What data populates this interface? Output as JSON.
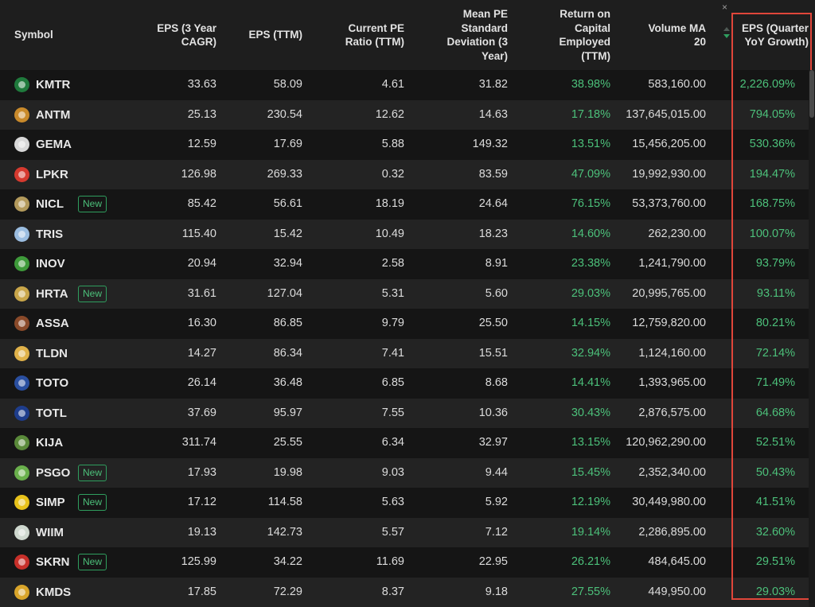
{
  "table": {
    "columns": [
      {
        "key": "symbol",
        "label": "Symbol"
      },
      {
        "key": "eps_3y_cagr",
        "label": "EPS (3 Year\nCAGR)"
      },
      {
        "key": "eps_ttm",
        "label": "EPS (TTM)"
      },
      {
        "key": "pe_ttm",
        "label": "Current PE\nRatio (TTM)"
      },
      {
        "key": "pe_std",
        "label": "Mean PE\nStandard\nDeviation (3\nYear)"
      },
      {
        "key": "roce",
        "label": "Return on\nCapital\nEmployed\n(TTM)"
      },
      {
        "key": "vol_ma20",
        "label": "Volume MA\n20"
      },
      {
        "key": "eps_qyoy",
        "label": "EPS (Quarter\nYoY Growth)"
      }
    ],
    "close_glyph": "×",
    "new_badge_label": "New",
    "rows": [
      {
        "symbol": "KMTR",
        "logo_color": "#1f7a3c",
        "new": false,
        "eps_3y_cagr": "33.63",
        "eps_ttm": "58.09",
        "pe_ttm": "4.61",
        "pe_std": "31.82",
        "roce": "38.98%",
        "vol_ma20": "583,160.00",
        "eps_qyoy": "2,226.09%"
      },
      {
        "symbol": "ANTM",
        "logo_color": "#c98a2b",
        "new": false,
        "eps_3y_cagr": "25.13",
        "eps_ttm": "230.54",
        "pe_ttm": "12.62",
        "pe_std": "14.63",
        "roce": "17.18%",
        "vol_ma20": "137,645,015.00",
        "eps_qyoy": "794.05%"
      },
      {
        "symbol": "GEMA",
        "logo_color": "#d8d8d8",
        "new": false,
        "eps_3y_cagr": "12.59",
        "eps_ttm": "17.69",
        "pe_ttm": "5.88",
        "pe_std": "149.32",
        "roce": "13.51%",
        "vol_ma20": "15,456,205.00",
        "eps_qyoy": "530.36%"
      },
      {
        "symbol": "LPKR",
        "logo_color": "#d63a2f",
        "new": false,
        "eps_3y_cagr": "126.98",
        "eps_ttm": "269.33",
        "pe_ttm": "0.32",
        "pe_std": "83.59",
        "roce": "47.09%",
        "vol_ma20": "19,992,930.00",
        "eps_qyoy": "194.47%"
      },
      {
        "symbol": "NICL",
        "logo_color": "#b39a5c",
        "new": true,
        "eps_3y_cagr": "85.42",
        "eps_ttm": "56.61",
        "pe_ttm": "18.19",
        "pe_std": "24.64",
        "roce": "76.15%",
        "vol_ma20": "53,373,760.00",
        "eps_qyoy": "168.75%"
      },
      {
        "symbol": "TRIS",
        "logo_color": "#9bbde0",
        "new": false,
        "eps_3y_cagr": "115.40",
        "eps_ttm": "15.42",
        "pe_ttm": "10.49",
        "pe_std": "18.23",
        "roce": "14.60%",
        "vol_ma20": "262,230.00",
        "eps_qyoy": "100.07%"
      },
      {
        "symbol": "INOV",
        "logo_color": "#3e9a3a",
        "new": false,
        "eps_3y_cagr": "20.94",
        "eps_ttm": "32.94",
        "pe_ttm": "2.58",
        "pe_std": "8.91",
        "roce": "23.38%",
        "vol_ma20": "1,241,790.00",
        "eps_qyoy": "93.79%"
      },
      {
        "symbol": "HRTA",
        "logo_color": "#c9a64a",
        "new": true,
        "eps_3y_cagr": "31.61",
        "eps_ttm": "127.04",
        "pe_ttm": "5.31",
        "pe_std": "5.60",
        "roce": "29.03%",
        "vol_ma20": "20,995,765.00",
        "eps_qyoy": "93.11%"
      },
      {
        "symbol": "ASSA",
        "logo_color": "#8a4a2a",
        "new": false,
        "eps_3y_cagr": "16.30",
        "eps_ttm": "86.85",
        "pe_ttm": "9.79",
        "pe_std": "25.50",
        "roce": "14.15%",
        "vol_ma20": "12,759,820.00",
        "eps_qyoy": "80.21%"
      },
      {
        "symbol": "TLDN",
        "logo_color": "#e0b24a",
        "new": false,
        "eps_3y_cagr": "14.27",
        "eps_ttm": "86.34",
        "pe_ttm": "7.41",
        "pe_std": "15.51",
        "roce": "32.94%",
        "vol_ma20": "1,124,160.00",
        "eps_qyoy": "72.14%"
      },
      {
        "symbol": "TOTO",
        "logo_color": "#2a4fa0",
        "new": false,
        "eps_3y_cagr": "26.14",
        "eps_ttm": "36.48",
        "pe_ttm": "6.85",
        "pe_std": "8.68",
        "roce": "14.41%",
        "vol_ma20": "1,393,965.00",
        "eps_qyoy": "71.49%"
      },
      {
        "symbol": "TOTL",
        "logo_color": "#1e3d8c",
        "new": false,
        "eps_3y_cagr": "37.69",
        "eps_ttm": "95.97",
        "pe_ttm": "7.55",
        "pe_std": "10.36",
        "roce": "30.43%",
        "vol_ma20": "2,876,575.00",
        "eps_qyoy": "64.68%"
      },
      {
        "symbol": "KIJA",
        "logo_color": "#5a8a3a",
        "new": false,
        "eps_3y_cagr": "311.74",
        "eps_ttm": "25.55",
        "pe_ttm": "6.34",
        "pe_std": "32.97",
        "roce": "13.15%",
        "vol_ma20": "120,962,290.00",
        "eps_qyoy": "52.51%"
      },
      {
        "symbol": "PSGO",
        "logo_color": "#6ab04c",
        "new": true,
        "eps_3y_cagr": "17.93",
        "eps_ttm": "19.98",
        "pe_ttm": "9.03",
        "pe_std": "9.44",
        "roce": "15.45%",
        "vol_ma20": "2,352,340.00",
        "eps_qyoy": "50.43%"
      },
      {
        "symbol": "SIMP",
        "logo_color": "#e8c21a",
        "new": true,
        "eps_3y_cagr": "17.12",
        "eps_ttm": "114.58",
        "pe_ttm": "5.63",
        "pe_std": "5.92",
        "roce": "12.19%",
        "vol_ma20": "30,449,980.00",
        "eps_qyoy": "41.51%"
      },
      {
        "symbol": "WIIM",
        "logo_color": "#cfd8cf",
        "new": false,
        "eps_3y_cagr": "19.13",
        "eps_ttm": "142.73",
        "pe_ttm": "5.57",
        "pe_std": "7.12",
        "roce": "19.14%",
        "vol_ma20": "2,286,895.00",
        "eps_qyoy": "32.60%"
      },
      {
        "symbol": "SKRN",
        "logo_color": "#c8302a",
        "new": true,
        "eps_3y_cagr": "125.99",
        "eps_ttm": "34.22",
        "pe_ttm": "11.69",
        "pe_std": "22.95",
        "roce": "26.21%",
        "vol_ma20": "484,645.00",
        "eps_qyoy": "29.51%"
      },
      {
        "symbol": "KMDS",
        "logo_color": "#d9a52a",
        "new": false,
        "eps_3y_cagr": "17.85",
        "eps_ttm": "72.29",
        "pe_ttm": "8.37",
        "pe_std": "9.18",
        "roce": "27.55%",
        "vol_ma20": "449,950.00",
        "eps_qyoy": "29.03%"
      }
    ]
  },
  "colors": {
    "positive": "#4cc07a",
    "highlight_border": "#e0463a",
    "row_dark": "#151515",
    "row_light": "#232323"
  }
}
